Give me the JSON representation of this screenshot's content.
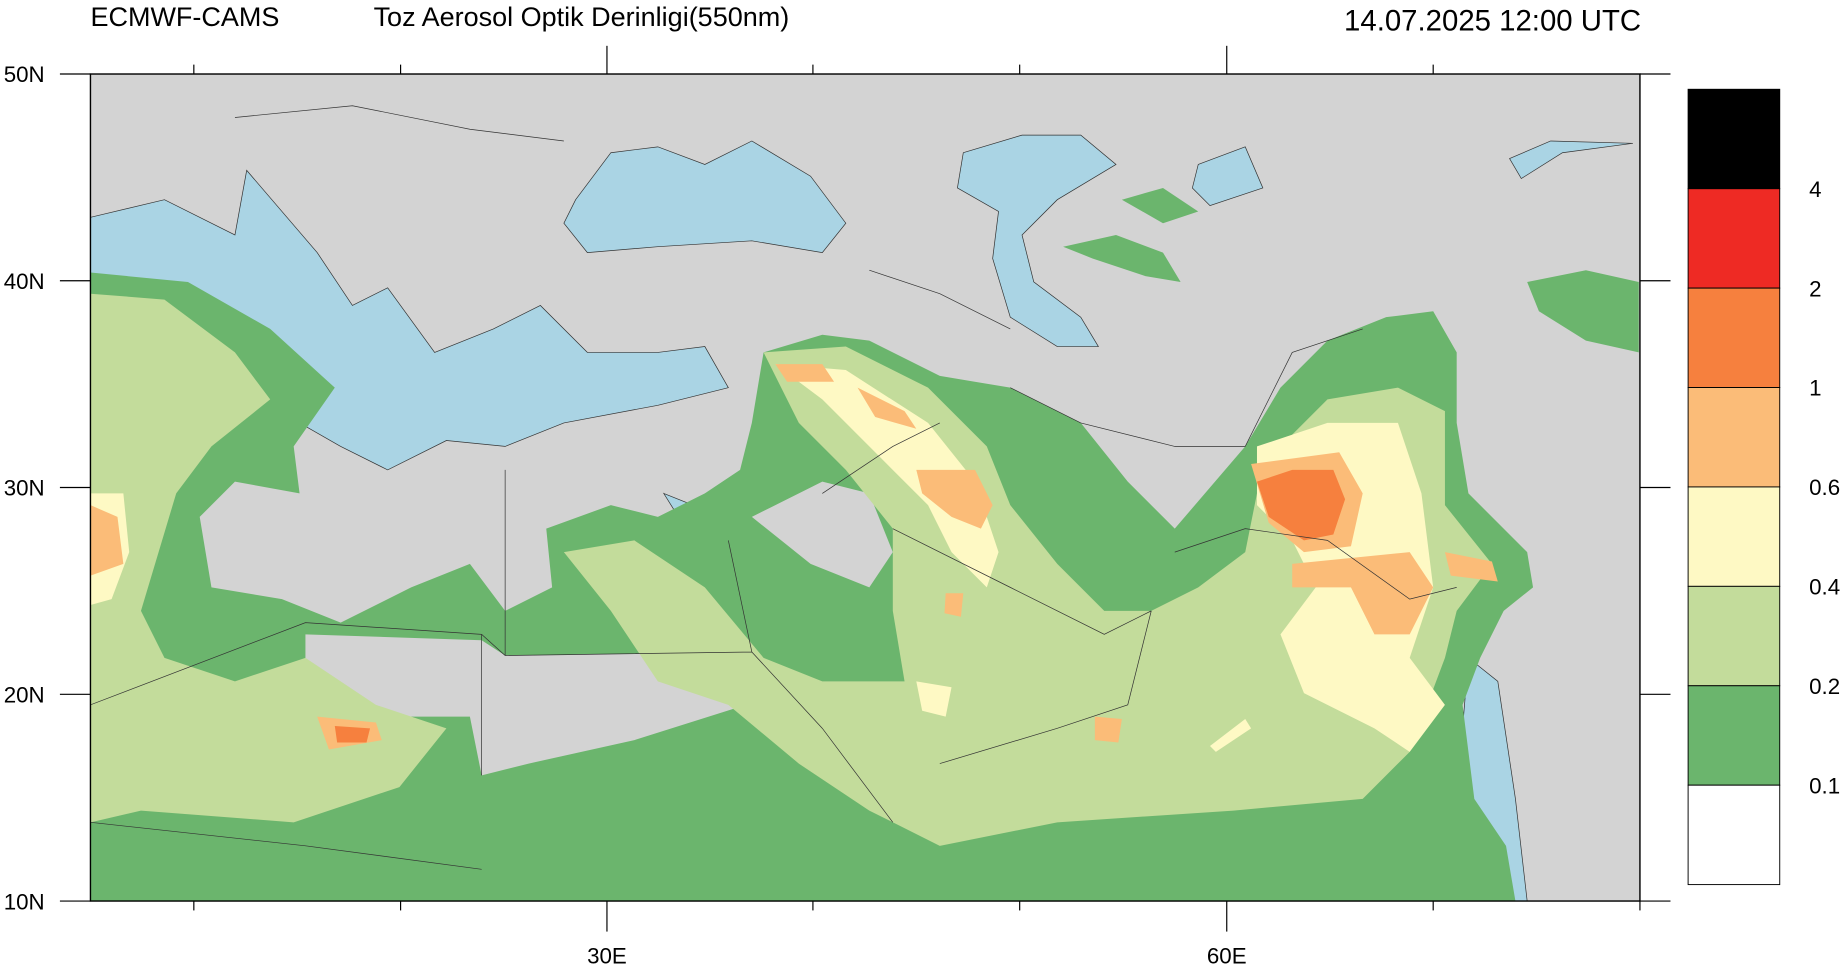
{
  "header": {
    "model": "ECMWF-CAMS",
    "title": "Toz Aerosol Optik Derinligi(550nm)",
    "time": "14.07.2025 12:00 UTC"
  },
  "map": {
    "lon_range": [
      5,
      80
    ],
    "lat_range": [
      10,
      50
    ],
    "lat_ticks": [
      {
        "value": 50,
        "label": "50N"
      },
      {
        "value": 40,
        "label": "40N"
      },
      {
        "value": 30,
        "label": "30N"
      },
      {
        "value": 20,
        "label": "20N"
      },
      {
        "value": 10,
        "label": "10N"
      }
    ],
    "lon_ticks": [
      {
        "value": 30,
        "label": "30E"
      },
      {
        "value": 60,
        "label": "60E"
      }
    ]
  },
  "legend": {
    "levels": [
      4,
      2,
      1,
      0.6,
      0.4,
      0.2,
      0.1
    ],
    "colors": [
      "#000000",
      "#ee2a24",
      "#f6803e",
      "#fbbc78",
      "#fef9c4",
      "#c3dc9b",
      "#6bb56d",
      "#ffffff"
    ]
  }
}
